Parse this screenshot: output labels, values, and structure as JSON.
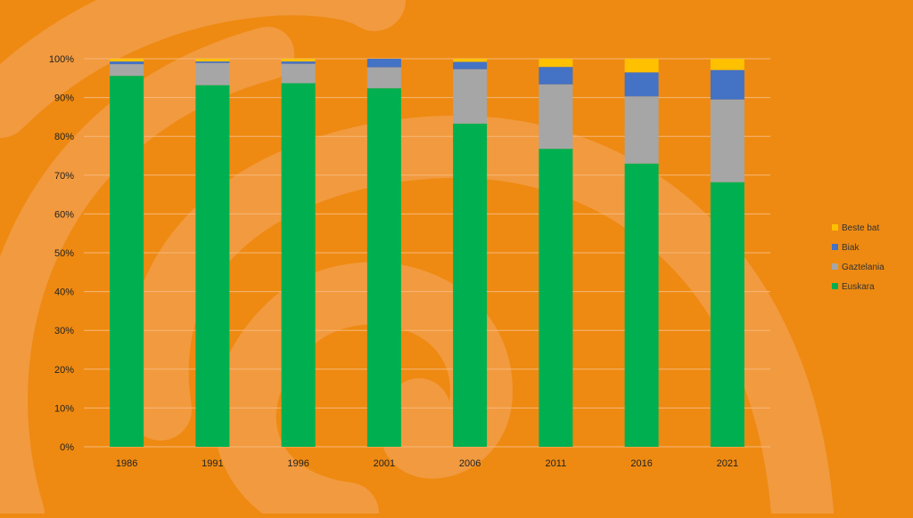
{
  "colors": {
    "background": "#ee8a12",
    "swirl": "#f29a3f",
    "gridline": "#f6b878",
    "axis_text": "#222222",
    "legend_text": "#333333"
  },
  "chart_data": {
    "type": "bar",
    "stacked": true,
    "title": "",
    "xlabel": "",
    "ylabel": "",
    "categories": [
      "1986",
      "1991",
      "1996",
      "2001",
      "2006",
      "2011",
      "2016",
      "2021"
    ],
    "ylim": [
      0,
      100
    ],
    "yticks": [
      "0%",
      "10%",
      "20%",
      "30%",
      "40%",
      "50%",
      "60%",
      "70%",
      "80%",
      "90%",
      "100%"
    ],
    "grid": true,
    "legend_position": "right",
    "series": [
      {
        "name": "Euskara",
        "color": "#00b050",
        "values": [
          95.6,
          93.2,
          93.7,
          92.4,
          83.3,
          76.8,
          73.0,
          68.2
        ]
      },
      {
        "name": "Gaztelania",
        "color": "#a6a6a6",
        "values": [
          3.0,
          5.7,
          5.0,
          5.4,
          14.0,
          16.6,
          17.3,
          21.3
        ]
      },
      {
        "name": "Biak",
        "color": "#4472c4",
        "values": [
          0.7,
          0.4,
          0.6,
          2.2,
          1.9,
          4.5,
          6.2,
          7.6
        ]
      },
      {
        "name": "Beste bat",
        "color": "#ffc000",
        "values": [
          0.7,
          0.7,
          0.7,
          0.0,
          0.8,
          2.1,
          3.5,
          2.9
        ]
      }
    ],
    "legend_order": [
      "Beste bat",
      "Biak",
      "Gaztelania",
      "Euskara"
    ]
  }
}
